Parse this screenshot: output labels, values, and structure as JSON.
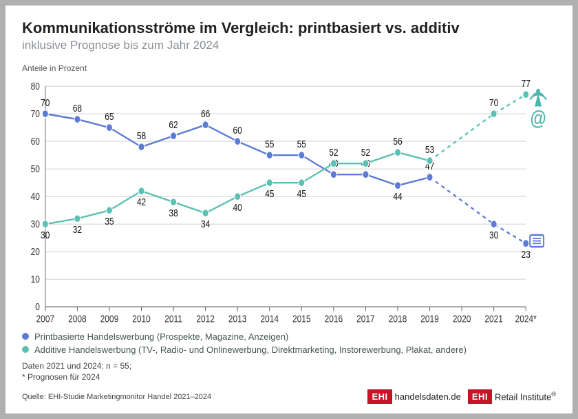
{
  "title": "Kommunikationsströme im Vergleich: printbasiert vs. additiv",
  "subtitle": "inklusive Prognose bis zum Jahr 2024",
  "unit_label": "Anteile in Prozent",
  "chart": {
    "type": "line",
    "xlabels": [
      "2007",
      "2008",
      "2009",
      "2010",
      "2011",
      "2012",
      "2013",
      "2014",
      "2015",
      "2016",
      "2017",
      "2018",
      "2019",
      "2020",
      "2021",
      "2024*"
    ],
    "ylim": [
      0,
      80
    ],
    "ytick_step": 10,
    "grid_color": "#d9d9d9",
    "axis_color": "#666666",
    "background": "#ffffff",
    "label_fontsize": 12,
    "marker_radius": 4.5,
    "line_width": 2,
    "dash_from_index": 12,
    "series": [
      {
        "id": "print",
        "color": "#5b7bd5",
        "values": [
          70,
          68,
          65,
          58,
          62,
          66,
          60,
          55,
          55,
          48,
          48,
          44,
          47,
          null,
          30,
          23
        ],
        "label_pos": [
          "above",
          "above",
          "above",
          "above",
          "above",
          "above",
          "above",
          "above",
          "above",
          "above",
          "above",
          "below",
          "above",
          null,
          "below",
          "below"
        ]
      },
      {
        "id": "additive",
        "color": "#5bc0b4",
        "values": [
          30,
          32,
          35,
          42,
          38,
          34,
          40,
          45,
          45,
          52,
          52,
          56,
          53,
          null,
          70,
          77
        ],
        "label_pos": [
          "below",
          "below",
          "below",
          "below",
          "below",
          "below",
          "below",
          "below",
          "below",
          "above",
          "above",
          "above",
          "above",
          null,
          "above",
          "above"
        ]
      }
    ]
  },
  "legend": {
    "print": {
      "color": "#5b7bd5",
      "label": "Printbasierte Handelswerbung (Prospekte, Magazine, Anzeigen)"
    },
    "additive": {
      "color": "#5bc0b4",
      "label": "Additive Handelswerbung (TV-, Radio- und Onlinewerbung, Direktmarketing, Instorewerbung, Plakat, andere)"
    }
  },
  "notes_line1": "Daten 2021 und 2024: n = 55;",
  "notes_line2": "* Prognosen für 2024",
  "source": "Quelle: EHI-Studie Marketingmonitor Handel 2021–2024",
  "logos": {
    "a_box": "EHI",
    "a_text": "handelsdaten.de",
    "b_box": "EHI",
    "b_text": "Retail Institute"
  },
  "icons": {
    "broadcast_color": "#4db6ac",
    "at_color": "#4db6ac",
    "newspaper_color": "#5b7bd5"
  }
}
